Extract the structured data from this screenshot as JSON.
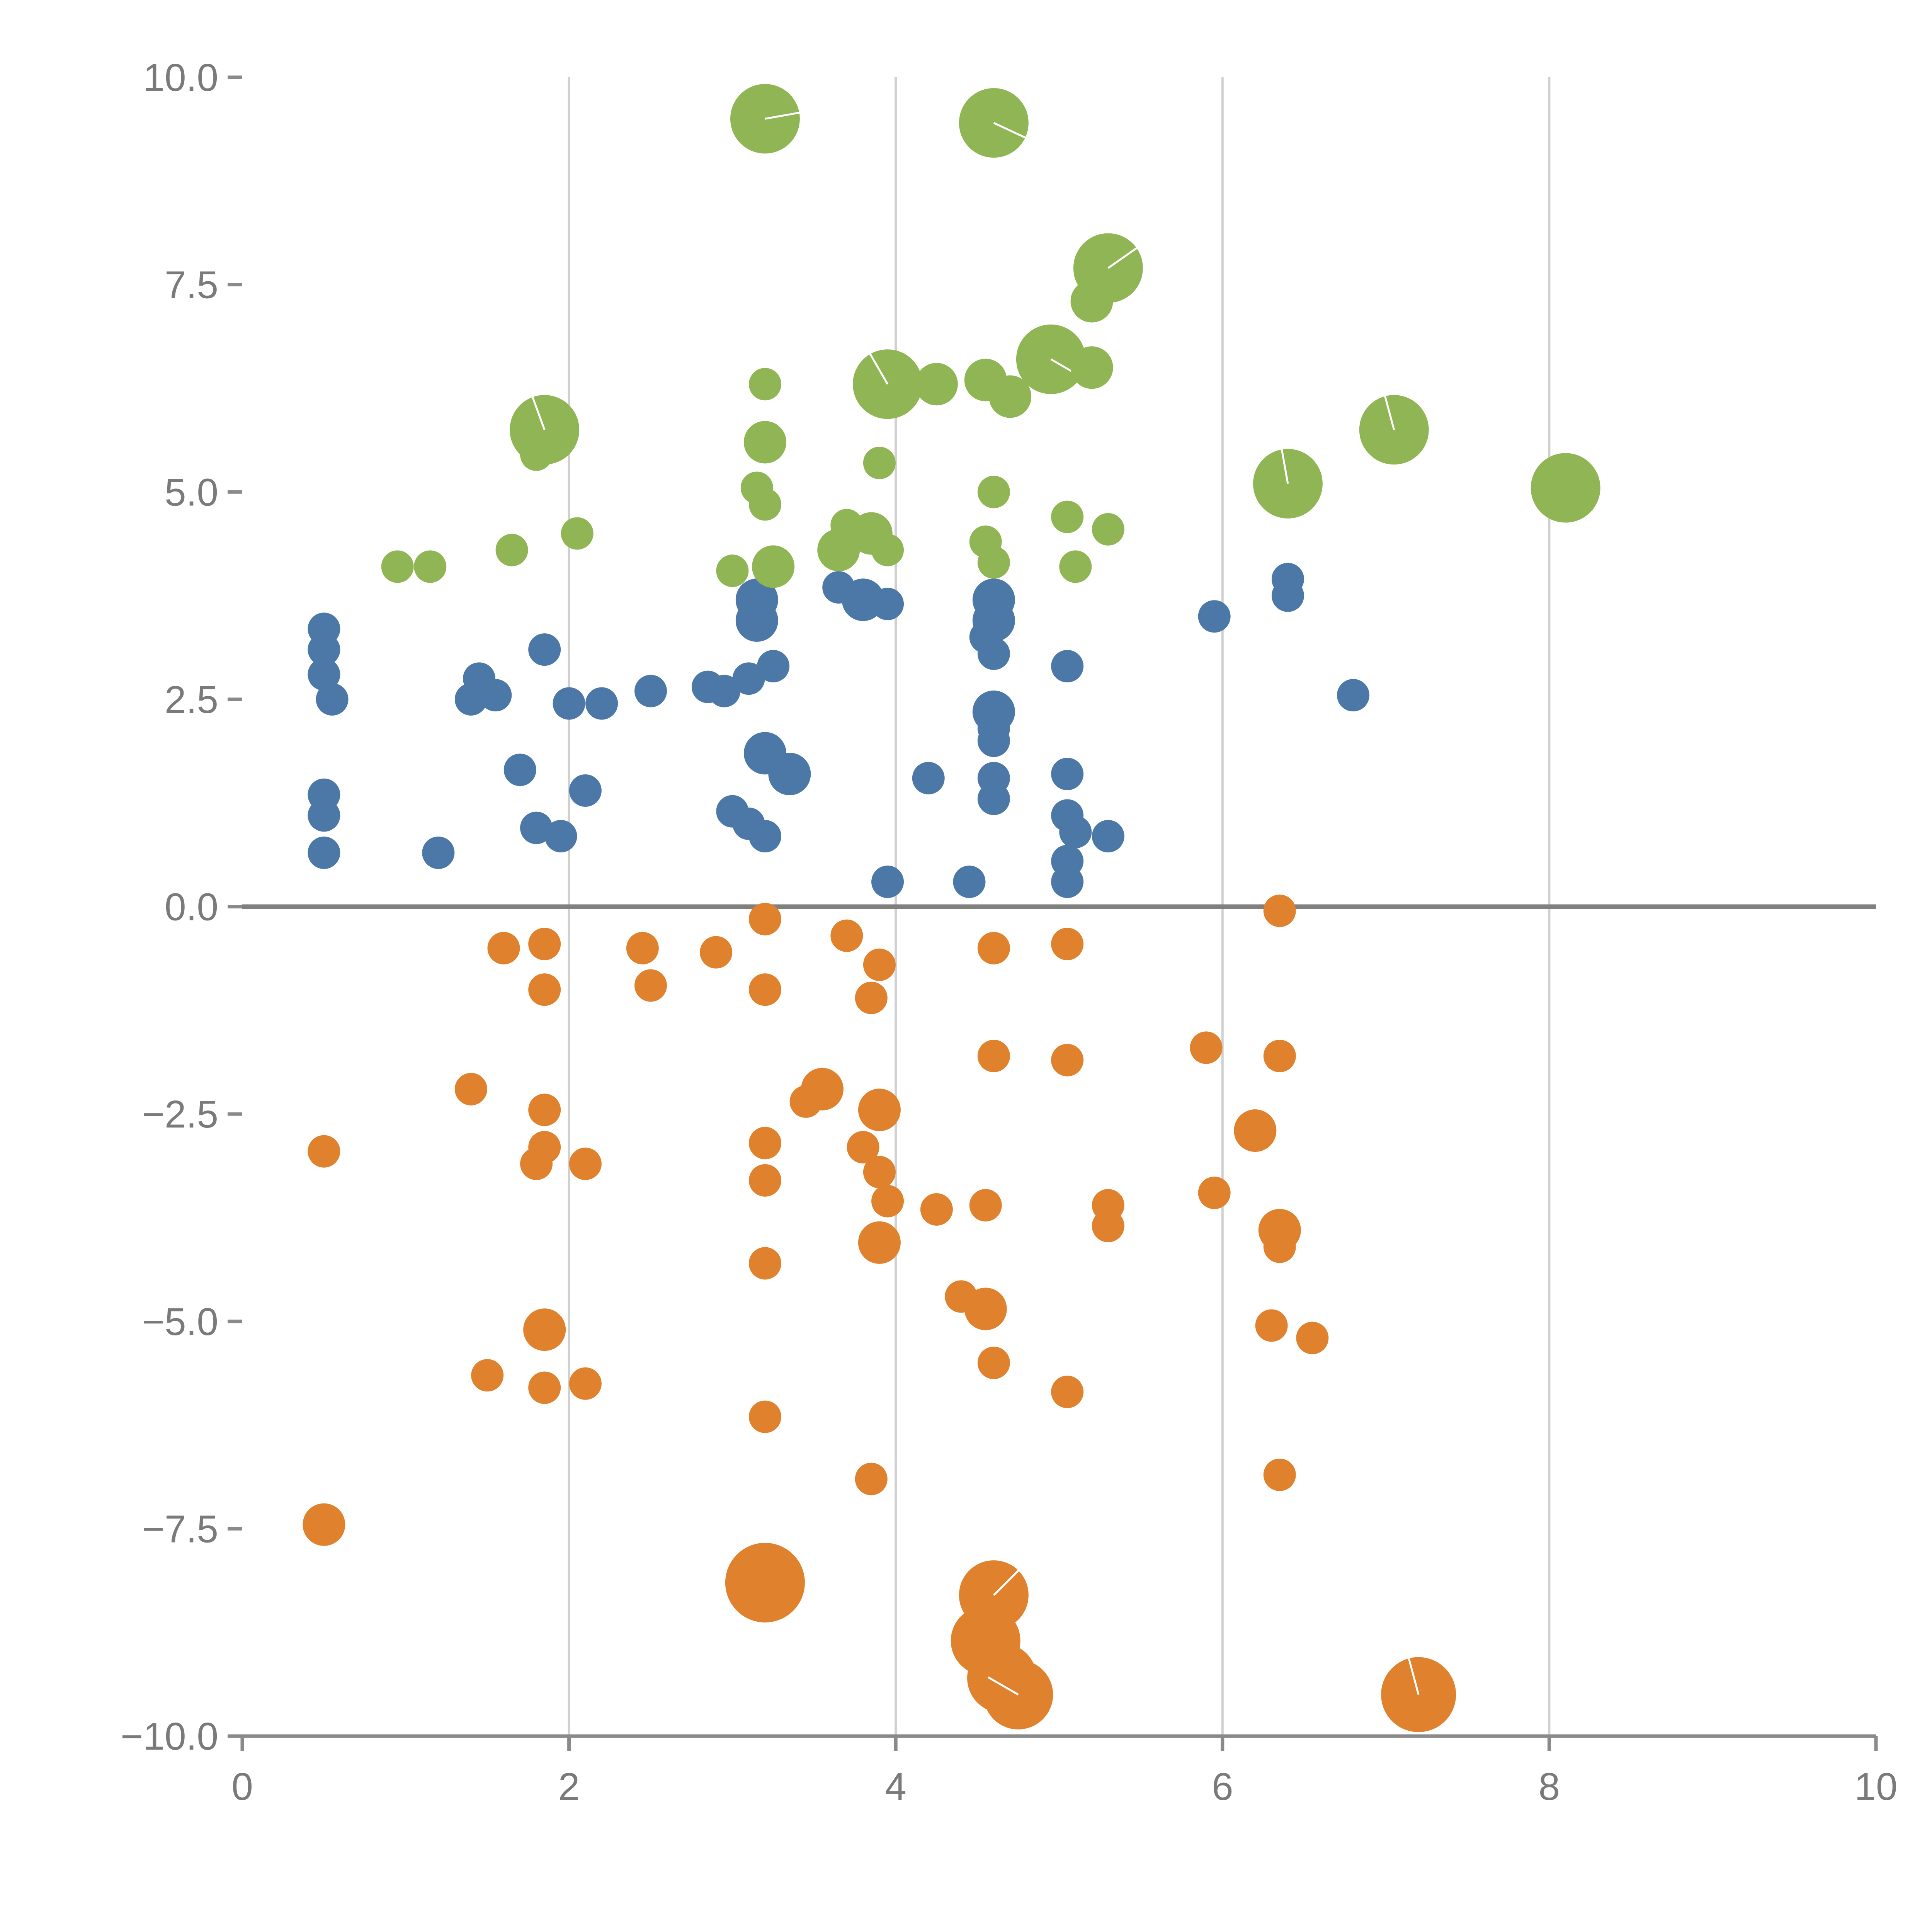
{
  "chart_data": {
    "type": "scatter",
    "title": "",
    "xlabel": "",
    "ylabel": "",
    "xlim": [
      0,
      10
    ],
    "ylim": [
      -10,
      10
    ],
    "grid": "vertical-only",
    "legend": "none",
    "background": "#ffffff",
    "x_ticks": [
      {
        "value": 0,
        "label": "0"
      },
      {
        "value": 2,
        "label": "2"
      },
      {
        "value": 4,
        "label": "4"
      },
      {
        "value": 6,
        "label": "6"
      },
      {
        "value": 8,
        "label": "8"
      },
      {
        "value": 10,
        "label": "10"
      }
    ],
    "y_ticks": [
      {
        "value": 10,
        "label": "10.0"
      },
      {
        "value": 7.5,
        "label": "7.5"
      },
      {
        "value": 5,
        "label": "5.0"
      },
      {
        "value": 2.5,
        "label": "2.5"
      },
      {
        "value": 0,
        "label": "0.0"
      },
      {
        "value": -2.5,
        "label": "−2.5"
      },
      {
        "value": -5,
        "label": "−5.0"
      },
      {
        "value": -7.5,
        "label": "−7.5"
      },
      {
        "value": -10,
        "label": "−10.0"
      }
    ],
    "gridlines": {
      "x_values": [
        2,
        4,
        6,
        8
      ],
      "color": "#d0d0d0"
    },
    "zero_line": {
      "y": 0,
      "color": "#808080"
    },
    "axis": {
      "color": "#8a8a8a",
      "label_color": "#7a7a7a"
    },
    "series": [
      {
        "name": "blue",
        "color": "#4c78a8",
        "points": [
          [
            0.5,
            3.35
          ],
          [
            0.5,
            3.1
          ],
          [
            0.5,
            2.8
          ],
          [
            0.55,
            2.5
          ],
          [
            0.5,
            1.35
          ],
          [
            0.5,
            1.1
          ],
          [
            0.5,
            0.65
          ],
          [
            1.2,
            0.65
          ],
          [
            1.45,
            2.75
          ],
          [
            1.4,
            2.5
          ],
          [
            1.55,
            2.55
          ],
          [
            1.7,
            1.65
          ],
          [
            1.85,
            3.1
          ],
          [
            1.8,
            0.95
          ],
          [
            1.95,
            0.85
          ],
          [
            2.0,
            2.45
          ],
          [
            2.2,
            2.45
          ],
          [
            2.1,
            1.4
          ],
          [
            2.5,
            2.6
          ],
          [
            2.85,
            2.65
          ],
          [
            2.95,
            2.6
          ],
          [
            3.1,
            2.75
          ],
          [
            3.15,
            3.7,
            55
          ],
          [
            3.15,
            3.45,
            55
          ],
          [
            3.25,
            2.9
          ],
          [
            3.2,
            1.85,
            55
          ],
          [
            3.35,
            1.6,
            55
          ],
          [
            3.0,
            1.15
          ],
          [
            3.1,
            1.0
          ],
          [
            3.2,
            0.85
          ],
          [
            3.65,
            3.85
          ],
          [
            3.8,
            3.7,
            55
          ],
          [
            3.95,
            3.65
          ],
          [
            3.95,
            0.3
          ],
          [
            4.2,
            1.55
          ],
          [
            4.45,
            0.3
          ],
          [
            4.6,
            3.7,
            55
          ],
          [
            4.6,
            3.45,
            55
          ],
          [
            4.55,
            3.25
          ],
          [
            4.6,
            3.05
          ],
          [
            4.6,
            2.35,
            55
          ],
          [
            4.6,
            2.15
          ],
          [
            4.6,
            2.0
          ],
          [
            4.6,
            1.55
          ],
          [
            4.6,
            1.3
          ],
          [
            5.05,
            2.9
          ],
          [
            5.05,
            1.6
          ],
          [
            5.05,
            1.1
          ],
          [
            5.1,
            0.9
          ],
          [
            5.05,
            0.55
          ],
          [
            5.05,
            0.3
          ],
          [
            5.3,
            0.85
          ],
          [
            5.95,
            3.5
          ],
          [
            6.4,
            3.95
          ],
          [
            6.4,
            3.75
          ],
          [
            6.8,
            2.55
          ]
        ]
      },
      {
        "name": "orange",
        "color": "#e0812d",
        "points": [
          [
            1.6,
            -0.5
          ],
          [
            1.85,
            -0.45
          ],
          [
            1.85,
            -1.0
          ],
          [
            2.45,
            -0.5
          ],
          [
            2.5,
            -0.95
          ],
          [
            2.9,
            -0.55
          ],
          [
            3.2,
            -0.15
          ],
          [
            3.2,
            -1.0
          ],
          [
            3.7,
            -0.35
          ],
          [
            3.9,
            -0.7
          ],
          [
            3.85,
            -1.1
          ],
          [
            4.6,
            -0.5
          ],
          [
            5.05,
            -0.45
          ],
          [
            6.35,
            -0.05
          ],
          [
            4.6,
            -1.8
          ],
          [
            5.05,
            -1.85
          ],
          [
            5.9,
            -1.7
          ],
          [
            6.35,
            -1.8
          ],
          [
            1.4,
            -2.2
          ],
          [
            3.55,
            -2.2,
            55
          ],
          [
            3.45,
            -2.35
          ],
          [
            3.9,
            -2.45,
            55
          ],
          [
            1.85,
            -2.45
          ],
          [
            6.2,
            -2.7,
            55
          ],
          [
            0.5,
            -2.95
          ],
          [
            1.85,
            -2.9
          ],
          [
            1.8,
            -3.1
          ],
          [
            2.1,
            -3.1
          ],
          [
            3.2,
            -2.85
          ],
          [
            3.8,
            -2.9
          ],
          [
            3.2,
            -3.3
          ],
          [
            3.9,
            -3.2
          ],
          [
            3.95,
            -3.55
          ],
          [
            4.25,
            -3.65
          ],
          [
            4.55,
            -3.6
          ],
          [
            5.3,
            -3.6
          ],
          [
            5.3,
            -3.85
          ],
          [
            5.95,
            -3.45
          ],
          [
            3.9,
            -4.05,
            55
          ],
          [
            3.2,
            -4.3
          ],
          [
            6.35,
            -3.9,
            55
          ],
          [
            6.35,
            -4.1
          ],
          [
            4.4,
            -4.7
          ],
          [
            4.55,
            -4.85,
            55
          ],
          [
            6.3,
            -5.05
          ],
          [
            6.55,
            -5.2
          ],
          [
            4.6,
            -5.5
          ],
          [
            1.5,
            -5.65
          ],
          [
            1.85,
            -5.1,
            55
          ],
          [
            1.85,
            -5.8
          ],
          [
            2.1,
            -5.75
          ],
          [
            5.05,
            -5.85
          ],
          [
            3.2,
            -6.15
          ],
          [
            3.85,
            -6.9
          ],
          [
            6.35,
            -6.85
          ],
          [
            0.5,
            -7.45,
            55
          ],
          [
            3.2,
            -8.15,
            103
          ],
          [
            4.6,
            -8.3,
            90,
            45
          ],
          [
            4.55,
            -8.85,
            90
          ],
          [
            4.65,
            -9.3,
            90
          ],
          [
            4.75,
            -9.5,
            90,
            -60
          ],
          [
            7.2,
            -9.5,
            97,
            -15
          ]
        ]
      },
      {
        "name": "green",
        "color": "#8fb554",
        "points": [
          [
            3.2,
            9.5,
            90,
            80
          ],
          [
            4.6,
            9.45,
            90,
            115
          ],
          [
            5.3,
            7.7,
            90,
            55
          ],
          [
            5.2,
            7.3,
            55
          ],
          [
            4.95,
            6.6,
            90,
            120
          ],
          [
            5.2,
            6.5,
            55
          ],
          [
            4.55,
            6.35,
            55
          ],
          [
            4.7,
            6.15,
            55
          ],
          [
            3.95,
            6.3,
            90,
            -30
          ],
          [
            4.25,
            6.3,
            55
          ],
          [
            3.2,
            6.3
          ],
          [
            1.85,
            5.75,
            90,
            -20
          ],
          [
            1.8,
            5.45
          ],
          [
            3.2,
            5.6,
            55
          ],
          [
            3.9,
            5.35
          ],
          [
            3.15,
            5.05
          ],
          [
            3.2,
            4.85
          ],
          [
            4.6,
            5.0
          ],
          [
            6.4,
            5.1,
            90,
            -10
          ],
          [
            7.05,
            5.75,
            90,
            -15
          ],
          [
            8.1,
            5.05,
            90
          ],
          [
            5.05,
            4.7
          ],
          [
            5.3,
            4.55
          ],
          [
            3.7,
            4.6
          ],
          [
            3.85,
            4.5,
            55
          ],
          [
            3.65,
            4.3,
            55
          ],
          [
            3.95,
            4.3
          ],
          [
            1.65,
            4.3
          ],
          [
            0.95,
            4.1
          ],
          [
            1.15,
            4.1
          ],
          [
            2.05,
            4.5
          ],
          [
            3.0,
            4.05
          ],
          [
            3.25,
            4.1,
            55
          ],
          [
            4.55,
            4.4
          ],
          [
            4.6,
            4.15
          ],
          [
            5.1,
            4.1
          ]
        ]
      }
    ]
  }
}
